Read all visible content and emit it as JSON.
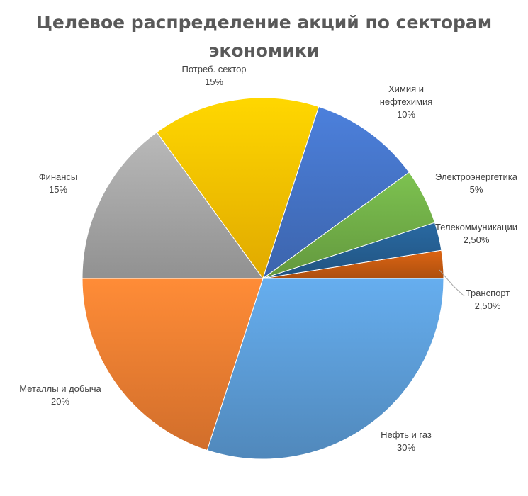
{
  "chart_data": {
    "type": "pie",
    "title": "Целевое распределение акций по секторам экономики",
    "title_lines": [
      "Целевое распределение акций по секторам",
      "экономики"
    ],
    "slices": [
      {
        "name": "Транспорт",
        "value_label": "2,50%",
        "value": 2.5,
        "color": "#c55a11"
      },
      {
        "name": "Нефть и газ",
        "value_label": "30%",
        "value": 30,
        "color": "#5b9bd5"
      },
      {
        "name": "Металлы и добыча",
        "value_label": "20%",
        "value": 20,
        "color": "#ed7d31"
      },
      {
        "name": "Финансы",
        "value_label": "15%",
        "value": 15,
        "color": "#a5a5a5"
      },
      {
        "name": "Потреб. сектор",
        "value_label": "15%",
        "value": 15,
        "color": "#ffc000"
      },
      {
        "name": "Химия и нефтехимия",
        "value_label": "10%",
        "value": 10,
        "color": "#4472c4"
      },
      {
        "name": "Электроэнергетика",
        "value_label": "5%",
        "value": 5,
        "color": "#70ad47"
      },
      {
        "name": "Телекоммуникации",
        "value_label": "2,50%",
        "value": 2.5,
        "color": "#255e91"
      }
    ],
    "legend": "none",
    "data_labels": "outside"
  }
}
